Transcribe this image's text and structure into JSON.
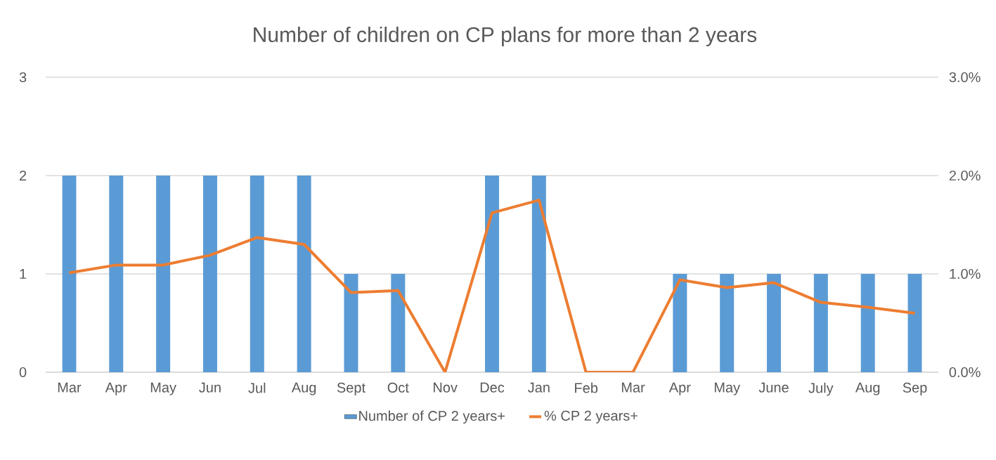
{
  "chart_data": {
    "type": "bar",
    "title": "Number of children on CP plans for more than 2 years",
    "categories": [
      "Mar",
      "Apr",
      "May",
      "Jun",
      "Jul",
      "Aug",
      "Sept",
      "Oct",
      "Nov",
      "Dec",
      "Jan",
      "Feb",
      "Mar",
      "Apr",
      "May",
      "June",
      "July",
      "Aug",
      "Sep"
    ],
    "series": [
      {
        "name": "Number of CP 2 years+",
        "color": "#5b9bd5",
        "values": [
          2,
          2,
          2,
          2,
          2,
          2,
          1,
          1,
          0,
          2,
          2,
          0,
          0,
          1,
          1,
          1,
          1,
          1,
          1
        ]
      },
      {
        "name": "% CP 2 years+",
        "type": "line",
        "axis": "y2",
        "color": "#ed7d31",
        "values": [
          1.01,
          1.09,
          1.09,
          1.19,
          1.37,
          1.3,
          0.81,
          0.83,
          0,
          1.62,
          1.75,
          0,
          0,
          0.94,
          0.86,
          0.91,
          0.71,
          0.66,
          0.6
        ]
      }
    ],
    "ylim": [
      0,
      3
    ],
    "yticks": [
      0,
      1,
      2,
      3
    ],
    "y2lim": [
      0,
      3
    ],
    "y2ticks": [
      {
        "value": 0,
        "label": "0.0%"
      },
      {
        "value": 1,
        "label": "1.0%"
      },
      {
        "value": 2,
        "label": "2.0%"
      },
      {
        "value": 3,
        "label": "3.0%"
      }
    ],
    "grid": "y",
    "legend": "bottom"
  }
}
